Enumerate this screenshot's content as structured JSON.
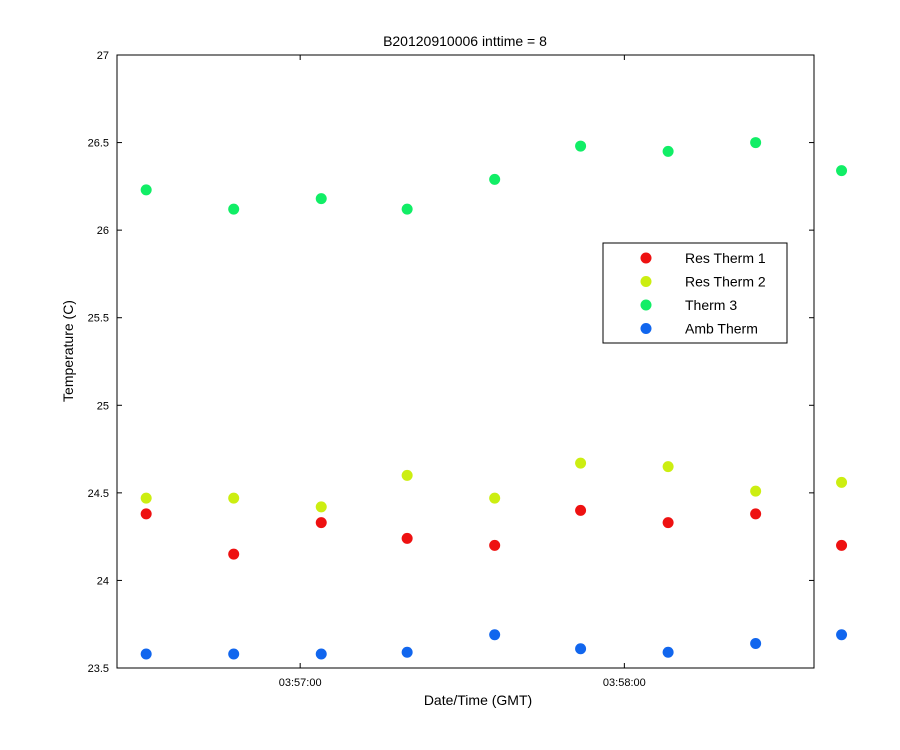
{
  "chart_data": {
    "type": "scatter",
    "title": "B20120910006 inttime = 8",
    "xlabel": "Date/Time (GMT)",
    "ylabel": "Temperature (C)",
    "xlim": [
      0,
      43
    ],
    "ylim": [
      23.5,
      27
    ],
    "grid": false,
    "legend_position": "right-center",
    "x_ticks": [
      {
        "value": 11.3,
        "label": "03:57:00"
      },
      {
        "value": 31.3,
        "label": "03:58:00"
      }
    ],
    "y_ticks": [
      {
        "value": 23.5,
        "label": "23.5"
      },
      {
        "value": 24,
        "label": "24"
      },
      {
        "value": 24.5,
        "label": "24.5"
      },
      {
        "value": 25,
        "label": "25"
      },
      {
        "value": 25.5,
        "label": "25.5"
      },
      {
        "value": 26,
        "label": "26"
      },
      {
        "value": 26.5,
        "label": "26.5"
      },
      {
        "value": 27,
        "label": "27"
      }
    ],
    "x": [
      1.8,
      7.2,
      12.6,
      17.9,
      23.3,
      28.6,
      34.0,
      39.4,
      44.7
    ],
    "series": [
      {
        "name": "Res Therm 1",
        "color": "#ee1111",
        "values": [
          24.38,
          24.15,
          24.33,
          24.24,
          24.2,
          24.4,
          24.33,
          24.38,
          24.2
        ]
      },
      {
        "name": "Res Therm 2",
        "color": "#ccee11",
        "values": [
          24.47,
          24.47,
          24.42,
          24.6,
          24.47,
          24.67,
          24.65,
          24.51,
          24.56
        ]
      },
      {
        "name": "Therm 3",
        "color": "#11ee66",
        "values": [
          26.23,
          26.12,
          26.18,
          26.12,
          26.29,
          26.48,
          26.45,
          26.5,
          26.34
        ]
      },
      {
        "name": "Amb Therm",
        "color": "#1166ee",
        "values": [
          23.58,
          23.58,
          23.58,
          23.59,
          23.69,
          23.61,
          23.59,
          23.64,
          23.69
        ]
      }
    ]
  }
}
